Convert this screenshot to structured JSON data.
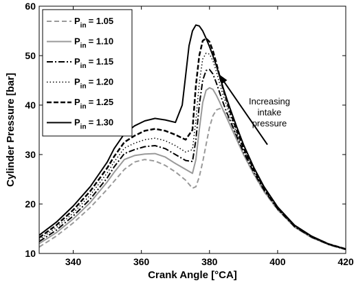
{
  "chart_data": {
    "type": "line",
    "xlabel": "Crank Angle [°CA]",
    "ylabel": "Cylinder Pressure [bar]",
    "xlim": [
      330,
      420
    ],
    "ylim": [
      10,
      60
    ],
    "xticks": [
      340,
      360,
      380,
      400,
      420
    ],
    "yticks": [
      10,
      20,
      30,
      40,
      50,
      60
    ],
    "grid": false,
    "legend_position": "top-left",
    "annotation": {
      "lines": [
        "Increasing",
        "intake",
        "pressure"
      ],
      "arrow_from": [
        397,
        32
      ],
      "arrow_to": [
        383,
        46
      ]
    },
    "series": [
      {
        "name_main": "P",
        "name_sub": "in",
        "name_value": "= 1.05",
        "color": "#999999",
        "dash": "7,4",
        "width": 2,
        "x": [
          330,
          335,
          340,
          345,
          350,
          352,
          355,
          358,
          361,
          364,
          367,
          370,
          373,
          375,
          376,
          377,
          378,
          379,
          380,
          381,
          382,
          383,
          384,
          385,
          386,
          388,
          390,
          393,
          396,
          400,
          405,
          410,
          415,
          420
        ],
        "y": [
          11.3,
          13.5,
          16.2,
          19.3,
          23.0,
          24.6,
          27.0,
          28.5,
          29.0,
          28.7,
          27.8,
          26.5,
          24.8,
          23.2,
          23.5,
          25.5,
          28.5,
          32.0,
          35.5,
          37.8,
          39.0,
          39.3,
          38.9,
          38.0,
          36.8,
          33.5,
          30.0,
          26.0,
          22.5,
          18.8,
          15.3,
          13.2,
          11.8,
          10.8
        ]
      },
      {
        "name_main": "P",
        "name_sub": "in",
        "name_value": "= 1.10",
        "color": "#999999",
        "dash": "",
        "width": 2,
        "x": [
          330,
          335,
          340,
          345,
          350,
          352,
          355,
          358,
          361,
          364,
          367,
          370,
          373,
          375,
          376,
          377,
          378,
          379,
          380,
          381,
          382,
          383,
          384,
          385,
          386,
          388,
          390,
          393,
          396,
          400,
          405,
          410,
          415,
          420
        ],
        "y": [
          12.0,
          14.2,
          17.0,
          20.3,
          24.5,
          26.4,
          29.0,
          29.8,
          30.1,
          30.2,
          29.5,
          28.2,
          27.0,
          26.2,
          29.0,
          35.0,
          40.5,
          43.0,
          43.5,
          43.2,
          42.0,
          40.6,
          39.0,
          37.5,
          36.0,
          33.0,
          30.0,
          26.1,
          22.6,
          18.9,
          15.3,
          13.2,
          11.8,
          10.8
        ]
      },
      {
        "name_main": "P",
        "name_sub": "in",
        "name_value": "= 1.15",
        "color": "#000000",
        "dash": "9,3,2,3",
        "width": 2,
        "x": [
          330,
          335,
          340,
          345,
          350,
          352,
          355,
          358,
          361,
          364,
          367,
          370,
          373,
          375,
          376,
          377,
          378,
          379,
          380,
          381,
          382,
          383,
          384,
          385,
          386,
          388,
          390,
          393,
          396,
          400,
          405,
          410,
          415,
          420
        ],
        "y": [
          12.4,
          14.7,
          17.6,
          21.0,
          25.3,
          27.5,
          30.2,
          31.0,
          31.6,
          31.8,
          31.2,
          30.0,
          28.8,
          28.6,
          33.0,
          40.0,
          45.0,
          47.0,
          47.2,
          46.3,
          44.5,
          42.5,
          40.5,
          38.6,
          37.0,
          33.7,
          30.5,
          26.4,
          22.8,
          19.0,
          15.4,
          13.3,
          11.8,
          10.8
        ]
      },
      {
        "name_main": "P",
        "name_sub": "in",
        "name_value": "= 1.20",
        "color": "#000000",
        "dash": "1.5,3",
        "width": 1.5,
        "x": [
          330,
          335,
          340,
          345,
          350,
          352,
          355,
          358,
          361,
          364,
          367,
          370,
          373,
          375,
          376,
          377,
          378,
          379,
          380,
          381,
          382,
          383,
          384,
          385,
          386,
          388,
          390,
          393,
          396,
          400,
          405,
          410,
          415,
          420
        ],
        "y": [
          12.8,
          15.2,
          18.2,
          21.8,
          26.3,
          28.5,
          31.3,
          32.3,
          33.0,
          33.3,
          32.8,
          31.8,
          30.5,
          31.0,
          37.0,
          44.5,
          49.3,
          50.5,
          50.3,
          49.0,
          46.8,
          44.3,
          42.0,
          40.0,
          38.0,
          34.3,
          31.0,
          26.8,
          23.0,
          19.1,
          15.5,
          13.3,
          11.8,
          10.8
        ]
      },
      {
        "name_main": "P",
        "name_sub": "in",
        "name_value": "= 1.25",
        "color": "#000000",
        "dash": "7,3",
        "width": 2.5,
        "x": [
          330,
          335,
          340,
          345,
          350,
          352,
          355,
          358,
          361,
          364,
          367,
          370,
          373,
          375,
          376,
          377,
          378,
          379,
          380,
          381,
          382,
          383,
          384,
          385,
          386,
          388,
          390,
          393,
          396,
          400,
          405,
          410,
          415,
          420
        ],
        "y": [
          13.2,
          15.7,
          18.8,
          22.6,
          27.3,
          29.6,
          32.5,
          33.8,
          34.8,
          35.2,
          34.8,
          34.0,
          33.0,
          35.0,
          44.0,
          50.0,
          53.0,
          53.5,
          52.8,
          51.0,
          48.5,
          45.8,
          43.3,
          41.0,
          38.8,
          34.9,
          31.3,
          27.0,
          23.2,
          19.2,
          15.6,
          13.4,
          11.9,
          10.9
        ]
      },
      {
        "name_main": "P",
        "name_sub": "in",
        "name_value": "= 1.30",
        "color": "#000000",
        "dash": "",
        "width": 2,
        "x": [
          330,
          335,
          340,
          345,
          350,
          352,
          355,
          358,
          361,
          364,
          367,
          370,
          372,
          373,
          374,
          375,
          376,
          377,
          378,
          379,
          380,
          381,
          382,
          383,
          384,
          385,
          386,
          388,
          390,
          393,
          396,
          400,
          405,
          410,
          415,
          420
        ],
        "y": [
          13.7,
          16.3,
          19.6,
          23.5,
          28.5,
          31.2,
          34.2,
          35.8,
          36.8,
          37.3,
          37.0,
          36.5,
          40.0,
          46.0,
          52.0,
          55.0,
          56.2,
          56.0,
          55.0,
          53.5,
          51.8,
          50.0,
          48.0,
          45.8,
          43.5,
          41.4,
          39.4,
          35.6,
          32.0,
          27.4,
          23.5,
          19.4,
          15.7,
          13.5,
          11.9,
          10.9
        ]
      }
    ]
  }
}
